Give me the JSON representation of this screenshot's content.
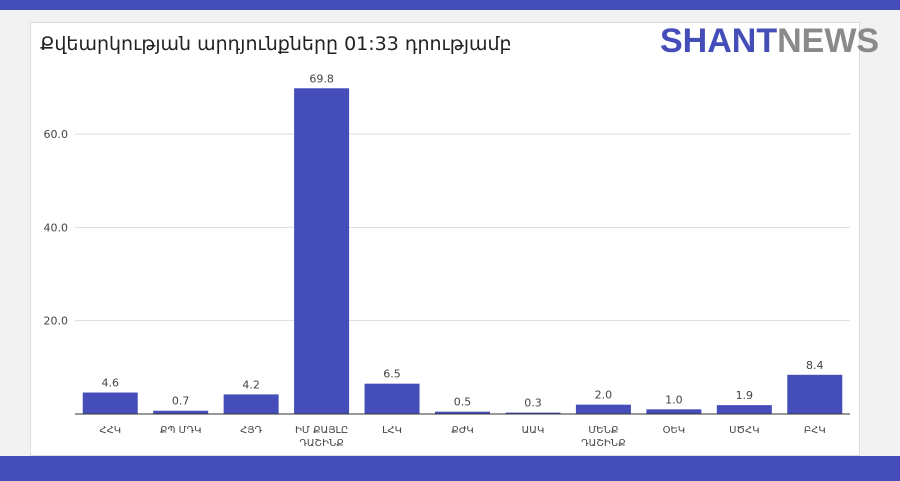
{
  "header": {
    "title": "Քվեարկության արդյունքները 01:33 դրությամբ",
    "logo_part1": "SHANT",
    "logo_part2": "NEWS"
  },
  "colors": {
    "bar": "#454db9",
    "frame": "#454db9",
    "grid": "#dddddd"
  },
  "chart_data": {
    "type": "bar",
    "title": "Քվեարկության արդյունքները 01:33 դրությամբ",
    "xlabel": "",
    "ylabel": "",
    "ylim": [
      0,
      75
    ],
    "yticks": [
      20.0,
      40.0,
      60.0
    ],
    "ytick_labels": [
      "20.0",
      "40.0",
      "60.0"
    ],
    "grid": true,
    "categories": [
      [
        "ՀՀԿ"
      ],
      [
        "ՔՊ ՄԴԿ"
      ],
      [
        "ՀՅԴ"
      ],
      [
        "ԻՄ ՔԱՅԼԸ",
        "ԴԱՇԻՆՔ"
      ],
      [
        "ԼՀԿ"
      ],
      [
        "ՔԺԿ"
      ],
      [
        "ԱԱԿ"
      ],
      [
        "ՄԵՆՔ",
        "ԴԱՇԻՆՔ"
      ],
      [
        "ՕԵԿ"
      ],
      [
        "ՍԾՀԿ"
      ],
      [
        "ԲՀԿ"
      ]
    ],
    "values": [
      4.6,
      0.7,
      4.2,
      69.8,
      6.5,
      0.5,
      0.3,
      2.0,
      1.0,
      1.9,
      8.4
    ],
    "value_labels": [
      "4.6",
      "0.7",
      "4.2",
      "69.8",
      "6.5",
      "0.5",
      "0.3",
      "2.0",
      "1.0",
      "1.9",
      "8.4"
    ]
  }
}
